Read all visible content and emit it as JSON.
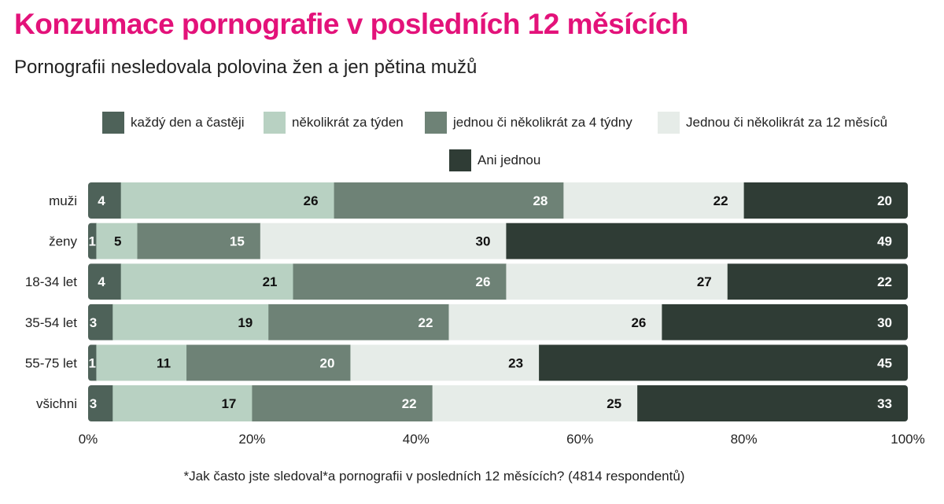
{
  "header": {
    "title": "Konzumace pornografie v posledních 12 měsících",
    "subtitle": "Pornografii nesledovala polovina žen a jen pětina mužů"
  },
  "footnote": "*Jak často jste sledoval*a pornografii v posledních 12 měsících?  (4814 respondentů)",
  "colors": {
    "title": "#e3127a",
    "s1": "#4e6259",
    "s2": "#b8d1c2",
    "s3": "#6e8276",
    "s4": "#e6ece8",
    "s5": "#2f3c35"
  },
  "chart_data": {
    "type": "bar",
    "orientation": "horizontal",
    "stacked": true,
    "categories": [
      "muži",
      "ženy",
      "18-34 let",
      "35-54 let",
      "55-75 let",
      "všichni"
    ],
    "series": [
      {
        "name": "každý den a častěji",
        "values": [
          4,
          1,
          4,
          3,
          1,
          3
        ],
        "color": "#4e6259",
        "label_color": "#ffffff"
      },
      {
        "name": "několikrát za týden",
        "values": [
          26,
          5,
          21,
          19,
          11,
          17
        ],
        "color": "#b8d1c2",
        "label_color": "#111111"
      },
      {
        "name": "jednou či několikrát za 4 týdny",
        "values": [
          28,
          15,
          26,
          22,
          20,
          22
        ],
        "color": "#6e8276",
        "label_color": "#ffffff"
      },
      {
        "name": "Jednou či několikrát za 12 měsíců",
        "values": [
          22,
          30,
          27,
          26,
          23,
          25
        ],
        "color": "#e6ece8",
        "label_color": "#111111"
      },
      {
        "name": "Ani jednou",
        "values": [
          20,
          49,
          22,
          30,
          45,
          33
        ],
        "color": "#2f3c35",
        "label_color": "#ffffff"
      }
    ],
    "xlim": [
      0,
      100
    ],
    "xticks": [
      "0%",
      "20%",
      "40%",
      "60%",
      "80%",
      "100%"
    ],
    "xlabel": "",
    "ylabel": "",
    "grid": false,
    "legend_position": "top"
  }
}
